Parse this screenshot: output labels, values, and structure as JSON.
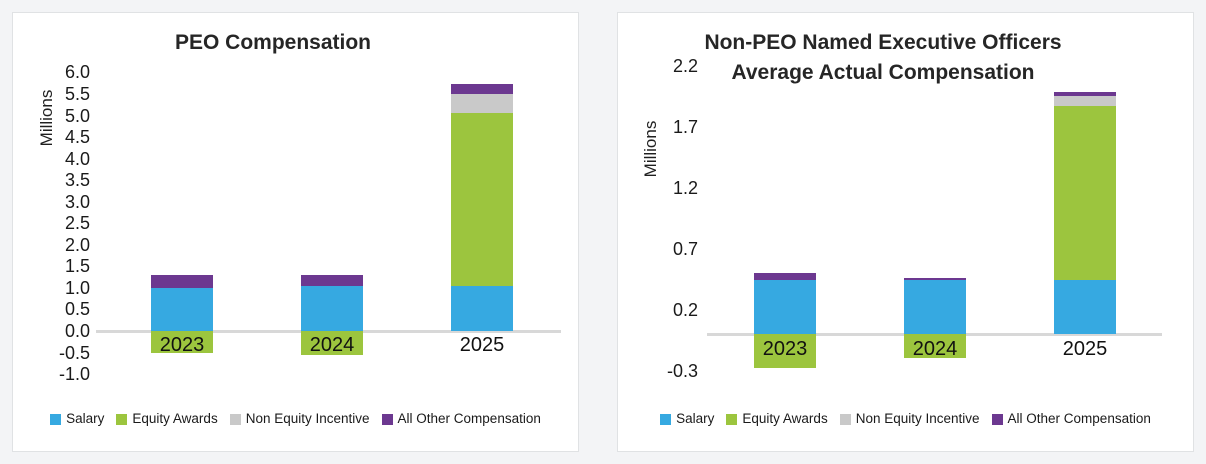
{
  "page_background": "#f3f4f6",
  "chart_data": [
    {
      "type": "bar",
      "stacked": true,
      "title": "PEO Compensation",
      "title_lines": [
        "PEO Compensation"
      ],
      "xlabel": "",
      "ylabel": "Millions",
      "units": "Millions",
      "ylim": [
        -1.0,
        6.0
      ],
      "yticks": [
        "6.0",
        "5.5",
        "5.0",
        "4.5",
        "4.0",
        "3.5",
        "3.0",
        "2.5",
        "2.0",
        "1.5",
        "1.0",
        "0.5",
        "0.0",
        "-0.5",
        "-1.0"
      ],
      "grid": false,
      "legend_position": "bottom",
      "categories": [
        "2023",
        "2024",
        "2025"
      ],
      "series": [
        {
          "name": "Salary",
          "values": [
            1.0,
            1.05,
            1.05
          ]
        },
        {
          "name": "Equity Awards",
          "values": [
            -0.5,
            -0.55,
            4.0
          ]
        },
        {
          "name": "Non Equity Incentive",
          "values": [
            0,
            0,
            0.45
          ]
        },
        {
          "name": "All Other Compensation",
          "values": [
            0.3,
            0.25,
            0.22
          ]
        }
      ],
      "legend": [
        "Salary",
        "Equity Awards",
        "Non Equity Incentive",
        "All Other Compensation"
      ],
      "colors": {
        "Salary": "#36A9E1",
        "Equity Awards": "#9CC53E",
        "Non Equity Incentive": "#C9C9C9",
        "All Other Compensation": "#6C3890"
      },
      "axis_color": "#D8D8D8"
    },
    {
      "type": "bar",
      "stacked": true,
      "title": "Non-PEO Named Executive Officers Average Actual Compensation",
      "title_lines": [
        "Non-PEO Named Executive Officers",
        "Average Actual Compensation"
      ],
      "xlabel": "",
      "ylabel": "Millions",
      "units": "Millions",
      "ylim": [
        -0.3,
        2.2
      ],
      "yticks": [
        "2.2",
        "1.7",
        "1.2",
        "0.7",
        "0.2",
        "-0.3"
      ],
      "grid": false,
      "legend_position": "bottom",
      "categories": [
        "2023",
        "2024",
        "2025"
      ],
      "series": [
        {
          "name": "Salary",
          "values": [
            0.44,
            0.44,
            0.44
          ]
        },
        {
          "name": "Equity Awards",
          "values": [
            -0.28,
            -0.2,
            1.43
          ]
        },
        {
          "name": "Non Equity Incentive",
          "values": [
            0,
            0,
            0.08
          ]
        },
        {
          "name": "All Other Compensation",
          "values": [
            0.06,
            0.02,
            0.03
          ]
        }
      ],
      "legend": [
        "Salary",
        "Equity Awards",
        "Non Equity Incentive",
        "All Other Compensation"
      ],
      "colors": {
        "Salary": "#36A9E1",
        "Equity Awards": "#9CC53E",
        "Non Equity Incentive": "#C9C9C9",
        "All Other Compensation": "#6C3890"
      },
      "axis_color": "#D8D8D8"
    }
  ]
}
